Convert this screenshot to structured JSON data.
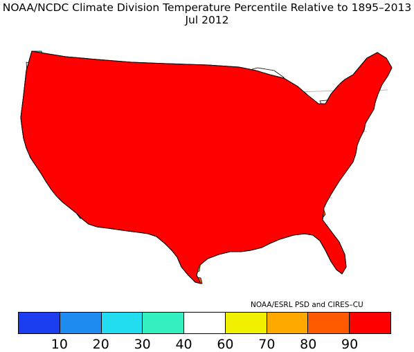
{
  "title": "NOAA/NCDC Climate Division Temperature Percentile Relative to 1895–2013",
  "subtitle": "Jul 2012",
  "credit": "NOAA/ESRL PSD and CIRES–CU",
  "legend": {
    "colors": [
      "#1c3cf0",
      "#1e8cf0",
      "#22dcf0",
      "#34f0c0",
      "#ffffff",
      "#f0f000",
      "#ffa800",
      "#ff5a00",
      "#ff0000"
    ],
    "tick_labels": [
      "10",
      "20",
      "30",
      "40",
      "60",
      "70",
      "80",
      "90"
    ]
  },
  "map": {
    "colors": {
      "p90": "#ff0000",
      "p80": "#ff5a00",
      "p70": "#ffa800",
      "p60": "#f0f000",
      "mid": "#ffffff",
      "p30": "#34f0c0",
      "outline": "#000000"
    }
  }
}
